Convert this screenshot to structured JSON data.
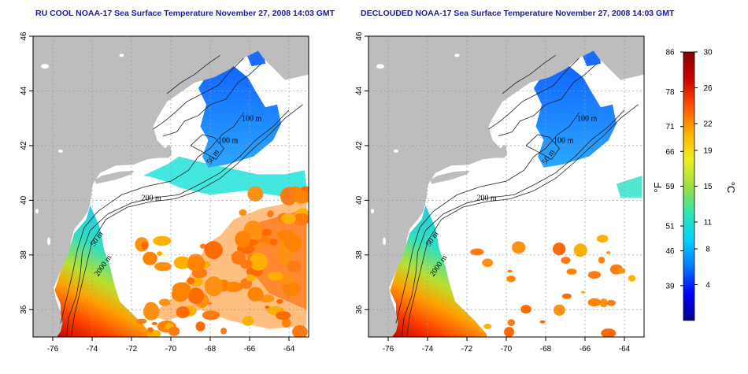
{
  "panels": [
    {
      "id": "left",
      "title": "RU COOL NOAA-17 Sea Surface Temperature November 27, 2008 14:03 GMT",
      "variant": "cool"
    },
    {
      "id": "right",
      "title": "DECLOUDED NOAA-17 Sea Surface Temperature November 27, 2008 14:03 GMT",
      "variant": "declouded"
    }
  ],
  "map_axes": {
    "lon_range": [
      -77,
      -63
    ],
    "lat_range": [
      35,
      46
    ],
    "lon_ticks": [
      "-76",
      "-74",
      "-72",
      "-70",
      "-68",
      "-66",
      "-64"
    ],
    "lat_ticks": [
      "36",
      "38",
      "40",
      "42",
      "44",
      "46"
    ]
  },
  "contour_labels": [
    {
      "text": "100 m",
      "lon": -66.4,
      "lat": 42.9
    },
    {
      "text": "100 m",
      "lon": -67.6,
      "lat": 42.1
    },
    {
      "text": "50 m",
      "lon": -68.0,
      "lat": 41.3
    },
    {
      "text": "200 m",
      "lon": -71.5,
      "lat": 40.0
    },
    {
      "text": "50 m",
      "lon": -73.9,
      "lat": 38.3
    },
    {
      "text": "2000 m",
      "lon": -73.7,
      "lat": 37.2
    }
  ],
  "colorbar": {
    "fahrenheit_ticks": [
      "86",
      "78",
      "71",
      "66",
      "59",
      "51",
      "46",
      "39"
    ],
    "celsius_ticks": [
      "30",
      "26",
      "22",
      "19",
      "15",
      "11",
      "8",
      "4"
    ],
    "celsius_range": [
      0,
      30
    ],
    "fahrenheit_unit": "°F",
    "celsius_unit": "°C",
    "colors": [
      "#00008b",
      "#0000ff",
      "#0078ff",
      "#00d2ff",
      "#30e6b0",
      "#9be040",
      "#f0f020",
      "#ffb000",
      "#ff5000",
      "#cc0000",
      "#880000"
    ]
  },
  "colors": {
    "land": "#bdbdbd",
    "title": "#1a1aa8"
  }
}
